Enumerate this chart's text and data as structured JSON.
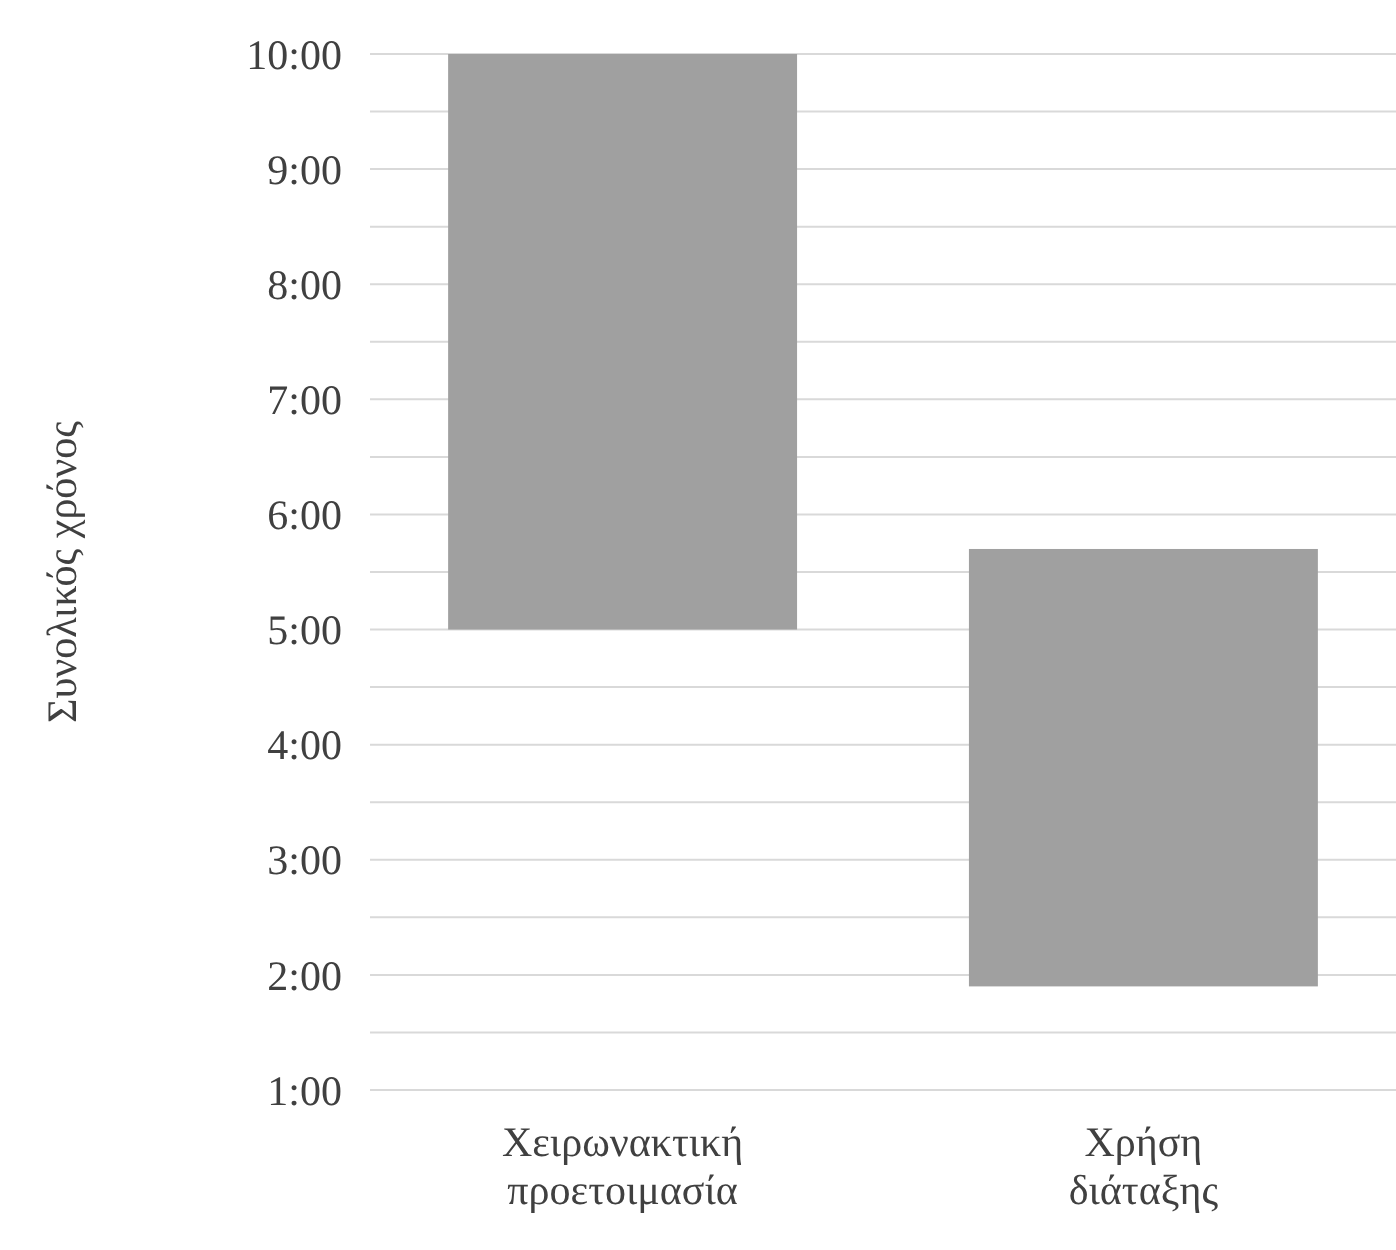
{
  "chart_data": {
    "type": "bar",
    "ylabel": "Συνολικός χρόνος",
    "categories": [
      "Χειρωνακτική προετοιμασία",
      "Χρήση διάταξης"
    ],
    "values": [
      5,
      3.8
    ],
    "base": [
      5,
      1.9
    ],
    "color": "#a0a0a0",
    "ylim": [
      1,
      10
    ],
    "yticks": [
      {
        "value": 1,
        "label": "1:00"
      },
      {
        "value": 1.5,
        "label": null
      },
      {
        "value": 2,
        "label": "2:00"
      },
      {
        "value": 2.5,
        "label": null
      },
      {
        "value": 3,
        "label": "3:00"
      },
      {
        "value": 3.5,
        "label": null
      },
      {
        "value": 4,
        "label": "4:00"
      },
      {
        "value": 4.5,
        "label": null
      },
      {
        "value": 5,
        "label": "5:00"
      },
      {
        "value": 5.5,
        "label": null
      },
      {
        "value": 6,
        "label": "6:00"
      },
      {
        "value": 6.5,
        "label": null
      },
      {
        "value": 7,
        "label": "7:00"
      },
      {
        "value": 7.5,
        "label": null
      },
      {
        "value": 8,
        "label": "8:00"
      },
      {
        "value": 8.5,
        "label": null
      },
      {
        "value": 9,
        "label": "9:00"
      },
      {
        "value": 9.5,
        "label": null
      },
      {
        "value": 10,
        "label": "10:00"
      }
    ],
    "grid": "y"
  }
}
